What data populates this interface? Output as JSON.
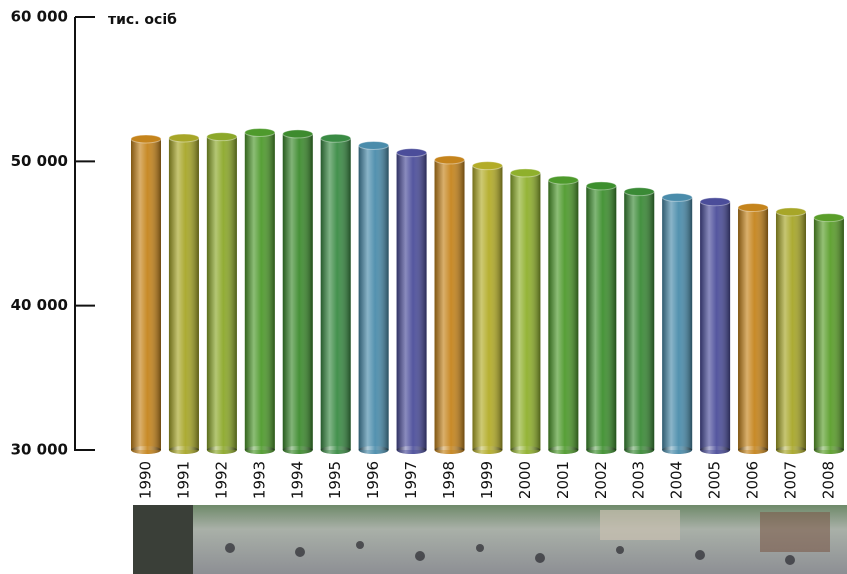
{
  "chart_data": {
    "type": "bar",
    "y_label": "тис. осіб",
    "categories": [
      "1990",
      "1991",
      "1992",
      "1993",
      "1994",
      "1995",
      "1996",
      "1997",
      "1998",
      "1999",
      "2000",
      "2001",
      "2002",
      "2003",
      "2004",
      "2005",
      "2006",
      "2007",
      "2008"
    ],
    "values": [
      51550,
      51620,
      51710,
      52000,
      51900,
      51600,
      51100,
      50600,
      50100,
      49700,
      49200,
      48700,
      48300,
      47900,
      47500,
      47200,
      46800,
      46500,
      46100
    ],
    "colors": [
      "#c5841c",
      "#a7a628",
      "#8ca82a",
      "#4e9a2c",
      "#3d8b2e",
      "#3a8b44",
      "#4a8cab",
      "#4b4d9a",
      "#c5841c",
      "#b3ac28",
      "#8fb02c",
      "#4e9a2c",
      "#3d8f2e",
      "#3a8a36",
      "#4a8cab",
      "#4b4d9a",
      "#c5841c",
      "#a7a628",
      "#5a9e2a"
    ],
    "ylim": [
      30000,
      60000
    ],
    "yticks": [
      {
        "value": 30000,
        "label": "30 000"
      },
      {
        "value": 40000,
        "label": "40 000"
      },
      {
        "value": 50000,
        "label": "50 000"
      },
      {
        "value": 60000,
        "label": "60 000"
      }
    ]
  }
}
